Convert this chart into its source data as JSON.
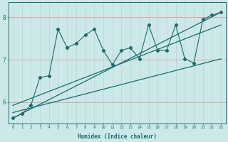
{
  "title": "",
  "xlabel": "Humidex (Indice chaleur)",
  "bg_color": "#cce8e8",
  "grid_color_major": "#d4a0a0",
  "grid_color_minor": "#b8d4d4",
  "line_color": "#1a6b6b",
  "xlim": [
    -0.5,
    23.5
  ],
  "ylim": [
    5.5,
    8.35
  ],
  "xticks": [
    0,
    1,
    2,
    3,
    4,
    5,
    6,
    7,
    8,
    9,
    10,
    11,
    12,
    13,
    14,
    15,
    16,
    17,
    18,
    19,
    20,
    21,
    22,
    23
  ],
  "yticks": [
    6,
    7,
    8
  ],
  "data_x": [
    0,
    1,
    2,
    3,
    4,
    5,
    6,
    7,
    8,
    9,
    10,
    11,
    12,
    13,
    14,
    15,
    16,
    17,
    18,
    19,
    20,
    21,
    22,
    23
  ],
  "data_y": [
    5.62,
    5.72,
    5.92,
    6.58,
    6.62,
    7.72,
    7.28,
    7.38,
    7.58,
    7.72,
    7.22,
    6.88,
    7.22,
    7.28,
    7.02,
    7.82,
    7.22,
    7.22,
    7.82,
    7.02,
    6.92,
    7.95,
    8.05,
    8.12
  ],
  "line1_x": [
    0,
    23
  ],
  "line1_y": [
    5.62,
    8.12
  ],
  "line2_x": [
    0,
    23
  ],
  "line2_y": [
    5.92,
    7.82
  ],
  "line3_x": [
    0,
    23
  ],
  "line3_y": [
    5.75,
    7.02
  ]
}
